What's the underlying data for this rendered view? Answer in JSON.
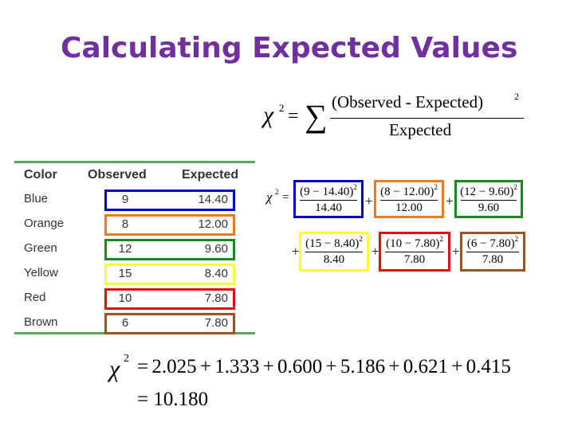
{
  "title": "Calculating Expected Values",
  "formula": {
    "chi": "χ",
    "sup2": "2",
    "eq": "=",
    "sigma": "∑",
    "numerator": "(Observed - Expected)",
    "denominator": "Expected"
  },
  "table": {
    "headers": [
      "Color",
      "Observed",
      "Expected"
    ],
    "rows": [
      {
        "color": "Blue",
        "observed": "9",
        "expected": "14.40",
        "box_color": "#0000cc"
      },
      {
        "color": "Orange",
        "observed": "8",
        "expected": "12.00",
        "box_color": "#f07820"
      },
      {
        "color": "Green",
        "observed": "12",
        "expected": "9.60",
        "box_color": "#1a8a1a"
      },
      {
        "color": "Yellow",
        "observed": "15",
        "expected": "8.40",
        "box_color": "#ffff33"
      },
      {
        "color": "Red",
        "observed": "10",
        "expected": "7.80",
        "box_color": "#e01010"
      },
      {
        "color": "Brown",
        "observed": "6",
        "expected": "7.80",
        "box_color": "#a0521e"
      }
    ]
  },
  "terms": [
    {
      "num": "(9 − 14.40)",
      "den": "14.40",
      "box_color": "#0000cc"
    },
    {
      "num": "(8 − 12.00)",
      "den": "12.00",
      "box_color": "#f07820"
    },
    {
      "num": "(12 − 9.60)",
      "den": "9.60",
      "box_color": "#1a8a1a"
    },
    {
      "num": "(15 − 8.40)",
      "den": "8.40",
      "box_color": "#ffff33"
    },
    {
      "num": "(10 − 7.80)",
      "den": "7.80",
      "box_color": "#e01010"
    },
    {
      "num": "(6 − 7.80)",
      "den": "7.80",
      "box_color": "#a0521e"
    }
  ],
  "plus": "+",
  "result": {
    "line1": "= 2.025 + 1.333 + 0.600 + 5.186 + 0.621 + 0.415",
    "line2": "= 10.180"
  }
}
